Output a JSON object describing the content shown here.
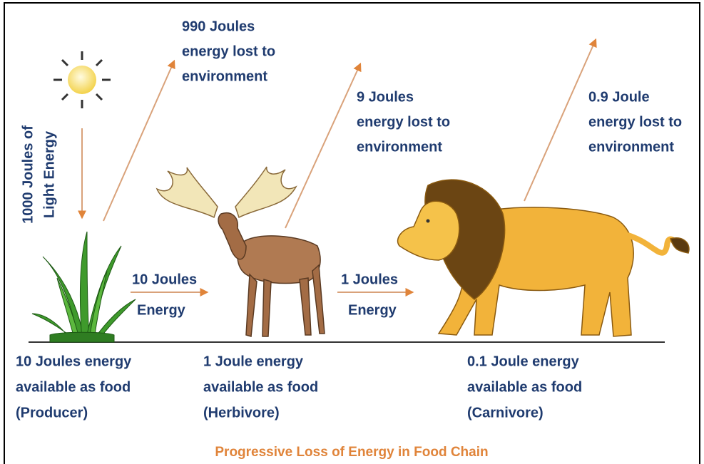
{
  "sun_label": [
    "1000 Joules of",
    "Light Energy"
  ],
  "losses": [
    [
      "990 Joules",
      "energy lost to",
      "environment"
    ],
    [
      "9 Joules",
      "energy lost to",
      "environment"
    ],
    [
      "0.9 Joule",
      "energy lost to",
      "environment"
    ]
  ],
  "transfers": [
    [
      "10 Joules",
      "Energy"
    ],
    [
      "1 Joules",
      "Energy"
    ]
  ],
  "levels": [
    [
      "10 Joules energy",
      "available as food",
      "(Producer)"
    ],
    [
      "1 Joule energy",
      "available as food",
      "(Herbivore)"
    ],
    [
      "0.1 Joule energy",
      "available as food",
      "(Carnivore)"
    ]
  ],
  "caption": "Progressive Loss of Energy in Food Chain"
}
